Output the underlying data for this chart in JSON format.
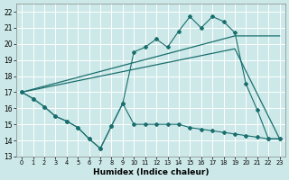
{
  "xlabel": "Humidex (Indice chaleur)",
  "bg_color": "#cce8e8",
  "line_color": "#1a6e6e",
  "grid_color": "#ffffff",
  "xlim": [
    -0.5,
    23.5
  ],
  "ylim": [
    13,
    22.5
  ],
  "yticks": [
    13,
    14,
    15,
    16,
    17,
    18,
    19,
    20,
    21,
    22
  ],
  "xticks": [
    0,
    1,
    2,
    3,
    4,
    5,
    6,
    7,
    8,
    9,
    10,
    11,
    12,
    13,
    14,
    15,
    16,
    17,
    18,
    19,
    20,
    21,
    22,
    23
  ],
  "line_top_x": [
    0,
    1,
    2,
    3,
    4,
    5,
    6,
    7,
    8,
    9,
    10,
    11,
    12,
    13,
    14,
    15,
    16,
    17,
    18,
    19,
    20,
    21,
    22,
    23
  ],
  "line_top_y": [
    17.0,
    16.6,
    16.1,
    15.5,
    15.2,
    14.8,
    14.1,
    13.5,
    14.9,
    16.3,
    19.5,
    19.8,
    20.3,
    19.8,
    20.8,
    21.7,
    21.0,
    21.7,
    21.4,
    20.7,
    17.5,
    15.9,
    14.1,
    14.1
  ],
  "line_bot_x": [
    0,
    1,
    2,
    3,
    4,
    5,
    6,
    7,
    8,
    9,
    10,
    11,
    12,
    13,
    14,
    15,
    16,
    17,
    18,
    19,
    20,
    21,
    22,
    23
  ],
  "line_bot_y": [
    17.0,
    16.6,
    16.1,
    15.5,
    15.2,
    14.8,
    14.1,
    13.5,
    14.9,
    16.3,
    15.0,
    15.0,
    15.0,
    15.0,
    15.0,
    14.8,
    14.7,
    14.6,
    14.5,
    14.4,
    14.3,
    14.2,
    14.1,
    14.1
  ],
  "line_trend1_x": [
    0,
    19,
    23
  ],
  "line_trend1_y": [
    17.0,
    20.5,
    20.5
  ],
  "line_trend2_x": [
    0,
    19,
    23
  ],
  "line_trend2_y": [
    17.0,
    19.7,
    14.1
  ]
}
